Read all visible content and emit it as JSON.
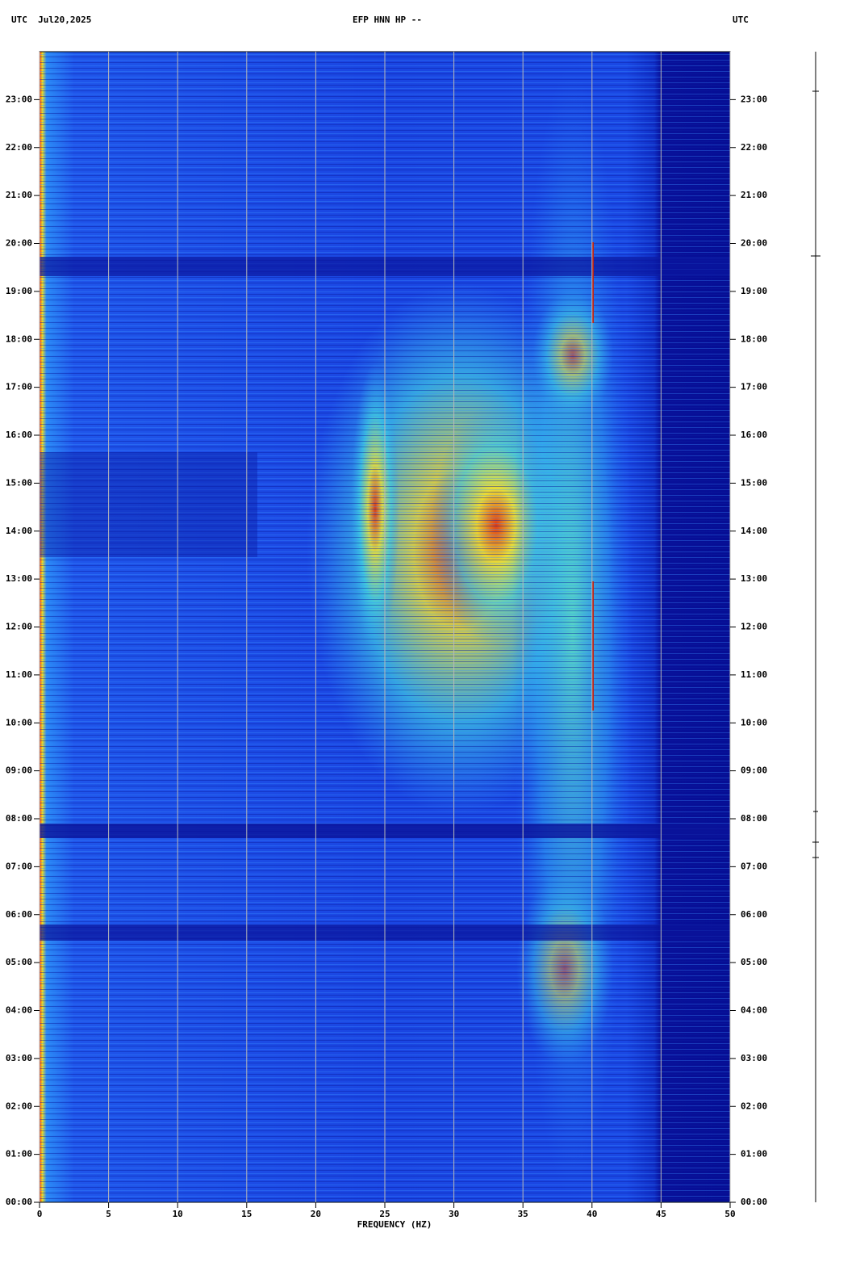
{
  "chart_data": {
    "type": "spectrogram",
    "title": "EFP HNN HP --",
    "header_left": "UTC  Jul20,2025",
    "header_right": "UTC",
    "xlabel": "FREQUENCY (HZ)",
    "xlim": [
      0,
      50
    ],
    "xticks": [
      0,
      5,
      10,
      15,
      20,
      25,
      30,
      35,
      40,
      45,
      50
    ],
    "ylim": [
      0,
      24
    ],
    "yticks": [
      {
        "value": 0,
        "label": "00:00"
      },
      {
        "value": 1,
        "label": "01:00"
      },
      {
        "value": 2,
        "label": "02:00"
      },
      {
        "value": 3,
        "label": "03:00"
      },
      {
        "value": 4,
        "label": "04:00"
      },
      {
        "value": 5,
        "label": "05:00"
      },
      {
        "value": 6,
        "label": "06:00"
      },
      {
        "value": 7,
        "label": "07:00"
      },
      {
        "value": 8,
        "label": "08:00"
      },
      {
        "value": 9,
        "label": "09:00"
      },
      {
        "value": 10,
        "label": "10:00"
      },
      {
        "value": 11,
        "label": "11:00"
      },
      {
        "value": 12,
        "label": "12:00"
      },
      {
        "value": 13,
        "label": "13:00"
      },
      {
        "value": 14,
        "label": "14:00"
      },
      {
        "value": 15,
        "label": "15:00"
      },
      {
        "value": 16,
        "label": "16:00"
      },
      {
        "value": 17,
        "label": "17:00"
      },
      {
        "value": 18,
        "label": "18:00"
      },
      {
        "value": 19,
        "label": "19:00"
      },
      {
        "value": 20,
        "label": "20:00"
      },
      {
        "value": 21,
        "label": "21:00"
      },
      {
        "value": 22,
        "label": "22:00"
      },
      {
        "value": 23,
        "label": "23:00"
      }
    ],
    "grid": true
  }
}
